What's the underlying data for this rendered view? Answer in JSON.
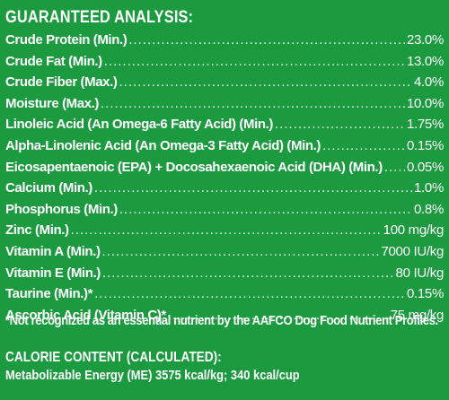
{
  "heading": "GUARANTEED ANALYSIS:",
  "rows": [
    {
      "label": "Crude Protein (Min.)",
      "value": "23.0%"
    },
    {
      "label": "Crude Fat (Min.)",
      "value": "13.0%"
    },
    {
      "label": "Crude Fiber (Max.)",
      "value": "4.0%"
    },
    {
      "label": "Moisture (Max.)",
      "value": "10.0%"
    },
    {
      "label": "Linoleic Acid (An Omega-6 Fatty Acid) (Min.)",
      "value": "1.75%"
    },
    {
      "label": "Alpha-Linolenic Acid (An Omega-3 Fatty Acid) (Min.)",
      "value": "0.15%"
    },
    {
      "label": "Eicosapentaenoic (EPA) + Docosahexaenoic Acid (DHA) (Min.)",
      "value": "0.05%"
    },
    {
      "label": "Calcium (Min.)",
      "value": "1.0%"
    },
    {
      "label": "Phosphorus (Min.)",
      "value": "0.8%"
    },
    {
      "label": "Zinc (Min.)",
      "value": "100 mg/kg"
    },
    {
      "label": "Vitamin A (Min.)",
      "value": "7000 IU/kg"
    },
    {
      "label": "Vitamin E (Min.)",
      "value": "80 IU/kg"
    },
    {
      "label": "Taurine (Min.)*",
      "value": "0.15%"
    },
    {
      "label": "Ascorbic Acid (Vitamin C)*",
      "value": "75 mg/kg"
    }
  ],
  "footnote": "*Not recognized as an essential nutrient by the AAFCO Dog Food Nutrient Profiles.",
  "calorie": {
    "heading": "CALORIE CONTENT (CALCULATED):",
    "value": "Metabolizable Energy (ME) 3575 kcal/kg;  340 kcal/cup"
  },
  "colors": {
    "background": "#1b9a3f",
    "text": "#ffffff"
  }
}
